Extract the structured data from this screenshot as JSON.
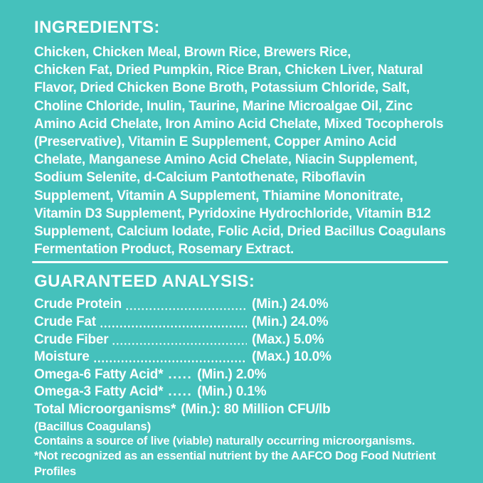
{
  "colors": {
    "background": "#45C1BC",
    "text": "#FFFFFF",
    "divider": "#FFFFFF"
  },
  "ingredients": {
    "title": "INGREDIENTS:",
    "lines": [
      "Chicken, Chicken Meal, Brown Rice, Brewers Rice,",
      "Chicken Fat, Dried Pumpkin, Rice Bran, Chicken Liver, Natural",
      "Flavor, Dried Chicken Bone Broth, Potassium Chloride, Salt,",
      "Choline Chloride, Inulin, Taurine, Marine Microalgae Oil, Zinc",
      "Amino Acid Chelate, Iron Amino Acid Chelate, Mixed Tocopherols",
      "(Preservative), Vitamin E Supplement, Copper Amino Acid",
      "Chelate, Manganese Amino Acid Chelate, Niacin Supplement,",
      "Sodium Selenite, d-Calcium Pantothenate, Riboflavin",
      "Supplement, Vitamin A Supplement, Thiamine Mononitrate,",
      "Vitamin D3 Supplement, Pyridoxine Hydrochloride, Vitamin B12",
      "Supplement, Calcium Iodate, Folic Acid, Dried Bacillus Coagulans",
      "Fermentation Product, Rosemary Extract."
    ]
  },
  "analysis": {
    "title": "GUARANTEED ANALYSIS:",
    "rows": [
      {
        "label": "Crude Protein",
        "value": "(Min.) 24.0%"
      },
      {
        "label": "Crude Fat",
        "value": "(Min.) 24.0%"
      },
      {
        "label": "Crude Fiber",
        "value": "(Max.) 5.0%"
      },
      {
        "label": "Moisture",
        "value": "(Max.) 10.0%"
      },
      {
        "label": "Omega-6 Fatty Acid*",
        "dots": ".....",
        "value": "(Min.) 2.0%"
      },
      {
        "label": "Omega-3 Fatty Acid*",
        "dots": ".....",
        "value": "(Min.) 0.1%"
      },
      {
        "label": "Total Microorganisms*",
        "value": "(Min.): 80 Million CFU/lb"
      }
    ],
    "subnote": "(Bacillus Coagulans)",
    "footnotes": [
      "Contains a source of live (viable) naturally occurring microorganisms.",
      "*Not recognized as an essential nutrient by the AAFCO Dog Food Nutrient",
      "Profiles"
    ]
  }
}
